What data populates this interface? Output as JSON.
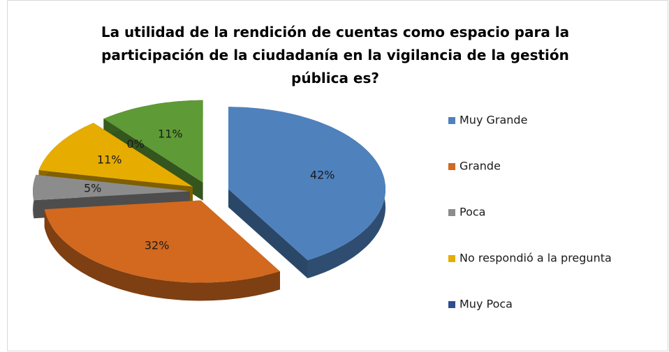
{
  "chart_data": {
    "type": "pie3d",
    "title": "La utilidad de la rendición de cuentas como espacio para la participación de la ciudadanía en la vigilancia de la gestión pública es?",
    "categories": [
      "Muy Grande",
      "Grande",
      "Poca",
      "No respondió a la pregunta",
      "Muy Poca",
      null
    ],
    "values": [
      42,
      32,
      5,
      11,
      0,
      11
    ],
    "value_labels": [
      "42%",
      "32%",
      "5%",
      "11%",
      "0%",
      "11%"
    ],
    "colors": [
      "#4f81bd",
      "#d2691e",
      "#8c8c8c",
      "#e6ac00",
      "#2e4f8f",
      "#5e9a36"
    ],
    "legend": "right"
  }
}
